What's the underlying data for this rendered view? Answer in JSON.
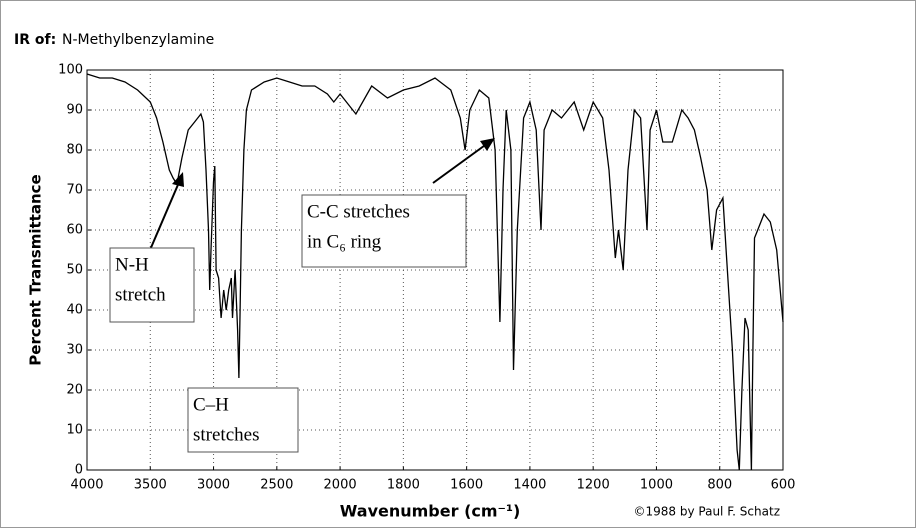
{
  "chart_data": {
    "type": "line",
    "title_prefix": "IR of:",
    "title": "N-Methylbenzylamine",
    "x_label": "Wavenumber (cm⁻¹)",
    "y_label": "Percent Transmittance",
    "credit": "©1988 by Paul F. Schatz",
    "color": "#000000",
    "grid": true,
    "xlim": [
      4000,
      600
    ],
    "ylim": [
      0,
      100
    ],
    "xticks": [
      4000,
      3500,
      3000,
      2500,
      2000,
      1800,
      1600,
      1400,
      1200,
      1000,
      800,
      600
    ],
    "yticks": [
      0,
      10,
      20,
      30,
      40,
      50,
      60,
      70,
      80,
      90,
      100
    ],
    "x": [
      4000,
      3900,
      3800,
      3700,
      3600,
      3500,
      3450,
      3400,
      3350,
      3320,
      3300,
      3280,
      3250,
      3200,
      3150,
      3100,
      3080,
      3060,
      3040,
      3030,
      3020,
      3000,
      2990,
      2980,
      2960,
      2940,
      2920,
      2900,
      2880,
      2860,
      2850,
      2830,
      2810,
      2800,
      2790,
      2780,
      2760,
      2740,
      2700,
      2600,
      2500,
      2400,
      2300,
      2200,
      2100,
      2050,
      2000,
      1950,
      1900,
      1850,
      1800,
      1750,
      1700,
      1650,
      1620,
      1605,
      1590,
      1560,
      1530,
      1510,
      1495,
      1485,
      1475,
      1460,
      1452,
      1440,
      1420,
      1400,
      1380,
      1365,
      1355,
      1330,
      1300,
      1260,
      1230,
      1200,
      1170,
      1150,
      1130,
      1120,
      1105,
      1090,
      1070,
      1050,
      1030,
      1020,
      1000,
      980,
      950,
      920,
      900,
      880,
      860,
      840,
      825,
      810,
      790,
      780,
      760,
      745,
      738,
      730,
      720,
      710,
      700,
      695,
      690,
      680,
      660,
      640,
      620,
      600
    ],
    "values": [
      99,
      98,
      98,
      97,
      95,
      92,
      88,
      82,
      75,
      73,
      72,
      73,
      78,
      85,
      87,
      89,
      87,
      75,
      60,
      45,
      55,
      72,
      76,
      50,
      48,
      38,
      45,
      40,
      45,
      48,
      38,
      50,
      35,
      23,
      40,
      60,
      80,
      90,
      95,
      97,
      98,
      97,
      96,
      96,
      94,
      92,
      94,
      89,
      96,
      93,
      95,
      96,
      98,
      95,
      88,
      80,
      90,
      95,
      93,
      80,
      37,
      70,
      90,
      80,
      25,
      60,
      88,
      92,
      85,
      60,
      85,
      90,
      88,
      92,
      85,
      92,
      88,
      75,
      53,
      60,
      50,
      75,
      90,
      88,
      60,
      85,
      90,
      82,
      82,
      90,
      88,
      85,
      78,
      70,
      55,
      65,
      68,
      55,
      30,
      5,
      0,
      20,
      38,
      35,
      0,
      30,
      58,
      60,
      64,
      62,
      55,
      37
    ],
    "annotations": [
      {
        "lines": [
          "N-H",
          "stretch"
        ]
      },
      {
        "lines": [
          "C–H",
          "stretches"
        ]
      },
      {
        "lines": [
          "C-C stretches",
          "in C₆ ring"
        ]
      }
    ]
  }
}
